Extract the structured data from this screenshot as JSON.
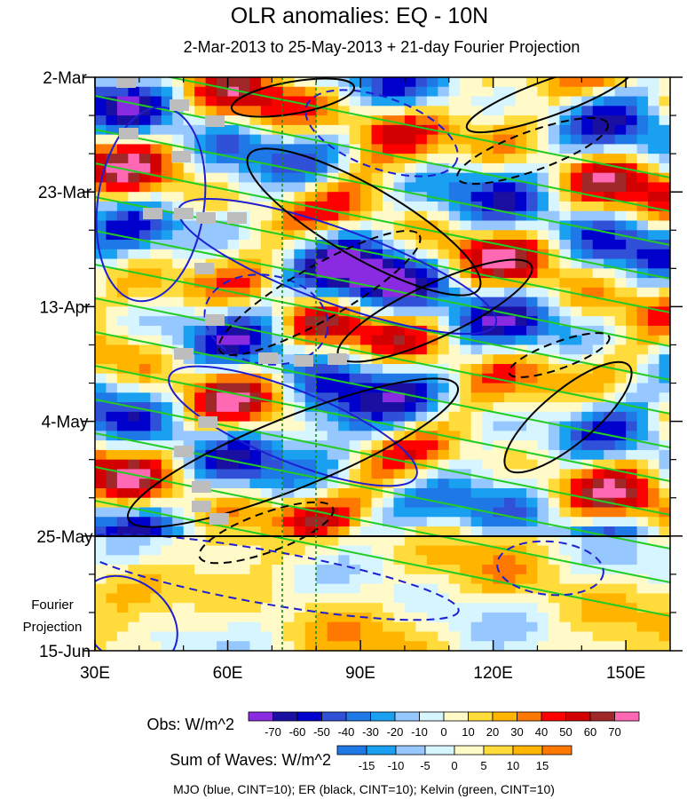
{
  "chart_data": {
    "type": "heatmap",
    "title": "OLR anomalies: EQ - 10N",
    "subtitle": "2-Mar-2013 to 25-May-2013 + 21-day Fourier Projection",
    "x_ticks": [
      "30E",
      "60E",
      "90E",
      "120E",
      "150E"
    ],
    "x_tick_values": [
      30,
      60,
      90,
      120,
      150
    ],
    "xlim": [
      30,
      160
    ],
    "y_ticks": [
      "2-Mar",
      "23-Mar",
      "13-Apr",
      "4-May",
      "25-May",
      "15-Jun"
    ],
    "y_tick_days": [
      0,
      21,
      42,
      63,
      84,
      105
    ],
    "ylim_days": [
      0,
      105
    ],
    "projection_label": [
      "Fourier",
      "Projection"
    ],
    "projection_start_day": 84,
    "vertical_dashed_lines_lon": [
      72,
      80
    ],
    "obs_legend": {
      "label": "Obs: W/m^2",
      "ticks": [
        "-70",
        "-60",
        "-50",
        "-40",
        "-30",
        "-20",
        "-10",
        "0",
        "10",
        "20",
        "30",
        "40",
        "50",
        "60",
        "70"
      ],
      "colors": [
        "#8a2be2",
        "#1a0fa0",
        "#0000cd",
        "#3050d8",
        "#1e78e6",
        "#19a0f0",
        "#96c8ff",
        "#d7f5ff",
        "#fffac8",
        "#ffdc3c",
        "#ffb400",
        "#ff7800",
        "#ff0000",
        "#d20000",
        "#a02828",
        "#ff69b4"
      ]
    },
    "waves_legend": {
      "label": "Sum of Waves: W/m^2",
      "ticks": [
        "-15",
        "-10",
        "-5",
        "0",
        "5",
        "10",
        "15"
      ],
      "colors": [
        "#1e78e6",
        "#19a0f0",
        "#96c8ff",
        "#d7f5ff",
        "#fffac8",
        "#ffdc3c",
        "#ffb400",
        "#ff7800"
      ]
    },
    "footer": "MJO (blue, CINT=10); ER (black, CINT=10); Kelvin (green, CINT=10)",
    "contour_colors": {
      "mjo": "#1e1ed2",
      "er": "#000000",
      "kelvin": "#22cc22"
    },
    "grid": false
  }
}
